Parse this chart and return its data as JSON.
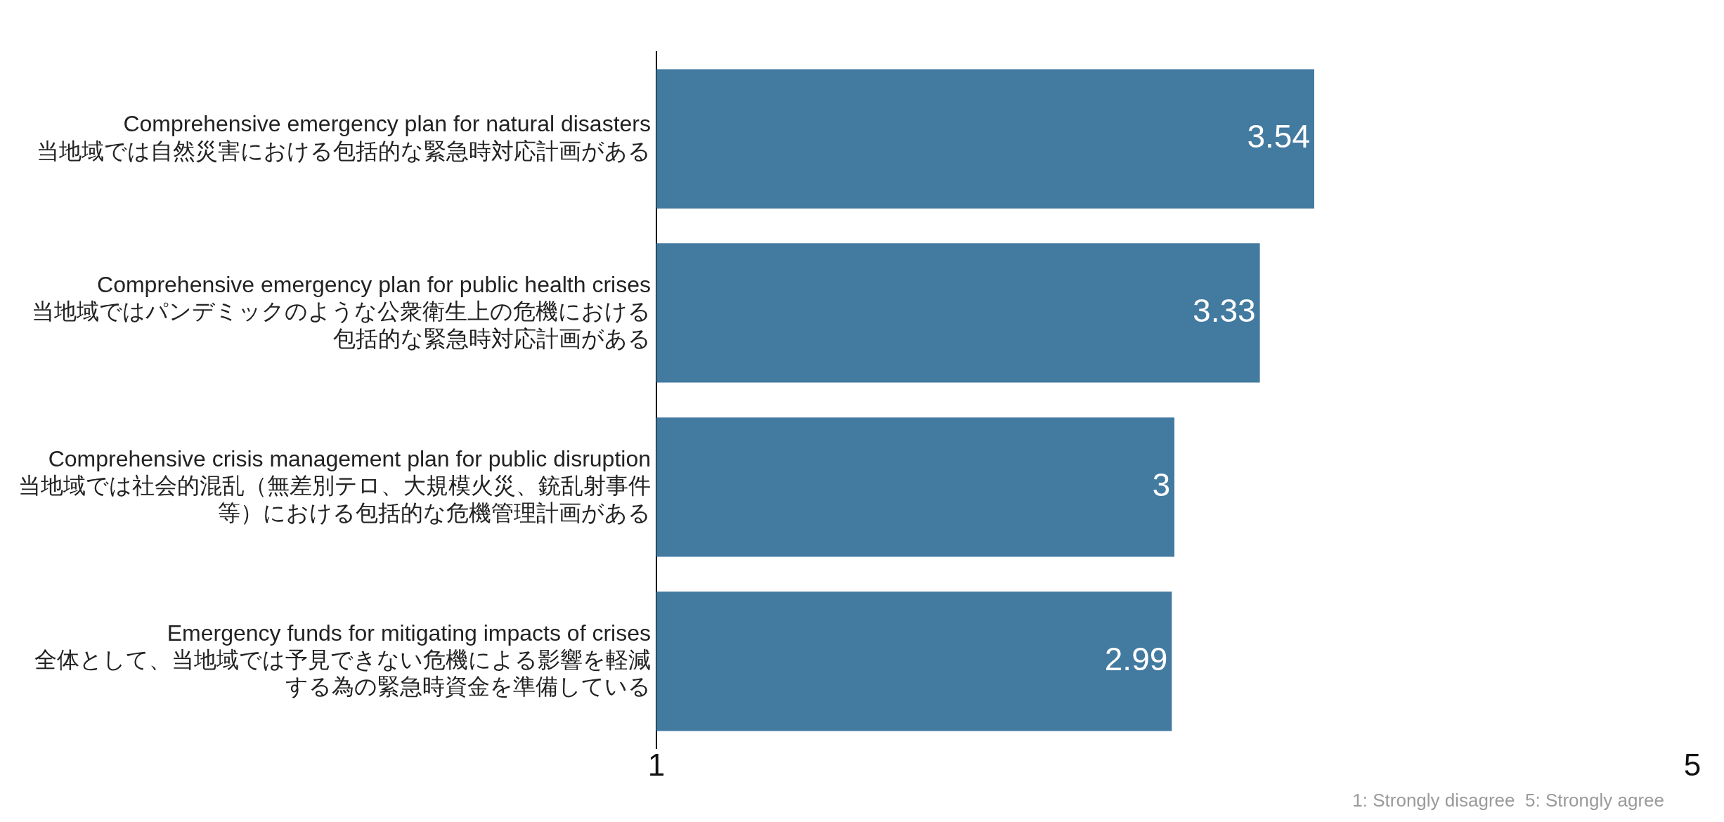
{
  "chart_data": {
    "type": "bar",
    "orientation": "horizontal",
    "categories": [
      "Comprehensive emergency plan for natural disasters\n当地域では自然災害における包括的な緊急時対応計画がある",
      "Comprehensive emergency plan for public health crises\n当地域ではパンデミックのような公衆衛生上の危機における包括的な緊急時対応計画がある",
      "Comprehensive crisis management plan for public disruption\n当地域では社会的混乱（無差別テロ、大規模火災、銃乱射事件等）における包括的な危機管理計画がある",
      "Emergency funds for mitigating impacts of crises\n全体として、当地域では予見できない危機による影響を軽減する為の緊急時資金を準備している"
    ],
    "values": [
      3.54,
      3.33,
      3,
      2.99
    ],
    "color": "#437aa0",
    "xlim": [
      1,
      5
    ],
    "xticks": [
      1,
      5
    ],
    "data_labels": true,
    "grid": false,
    "legend": false,
    "annotations": [
      "1: Strongly disagree  5: Strongly agree"
    ]
  }
}
